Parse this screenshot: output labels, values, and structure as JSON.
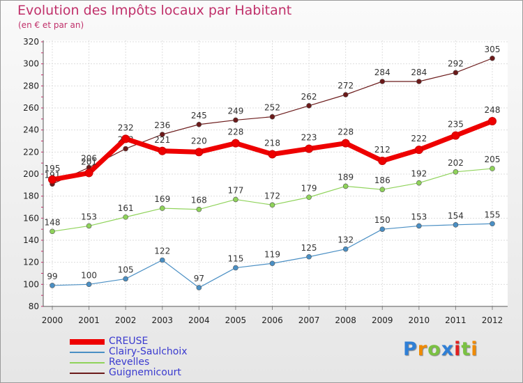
{
  "title": "Evolution des Impôts locaux par Habitant",
  "subtitle": "(en € et par an)",
  "brand": "Proxiti",
  "chart_data": {
    "type": "line",
    "title": "Evolution des Impôts locaux par Habitant",
    "subtitle": "(en € et par an)",
    "xlabel": "",
    "ylabel": "",
    "x": [
      "2000",
      "2001",
      "2002",
      "2003",
      "2004",
      "2005",
      "2006",
      "2007",
      "2008",
      "2009",
      "2010",
      "2011",
      "2012"
    ],
    "ylim": [
      80,
      320
    ],
    "yticks": [
      80,
      100,
      120,
      140,
      160,
      180,
      200,
      220,
      240,
      260,
      280,
      300,
      320
    ],
    "grid": true,
    "legend_position": "bottom-left",
    "series": [
      {
        "name": "Guignemicourt",
        "color": "#6b1a1a",
        "width": 1.2,
        "values": [
          191,
          206,
          223,
          236,
          245,
          249,
          252,
          262,
          272,
          284,
          284,
          292,
          305
        ]
      },
      {
        "name": "Revelles",
        "color": "#8fd35a",
        "width": 1.2,
        "values": [
          148,
          153,
          161,
          169,
          168,
          177,
          172,
          179,
          189,
          186,
          192,
          202,
          205
        ]
      },
      {
        "name": "Clairy-Saulchoix",
        "color": "#4a8fc4",
        "width": 1.2,
        "values": [
          99,
          100,
          105,
          122,
          97,
          115,
          119,
          125,
          132,
          150,
          153,
          154,
          155
        ]
      },
      {
        "name": "CREUSE",
        "color": "#ee0000",
        "width": 7,
        "values": [
          195,
          201,
          232,
          221,
          220,
          228,
          218,
          223,
          228,
          212,
          222,
          235,
          248
        ]
      }
    ]
  }
}
